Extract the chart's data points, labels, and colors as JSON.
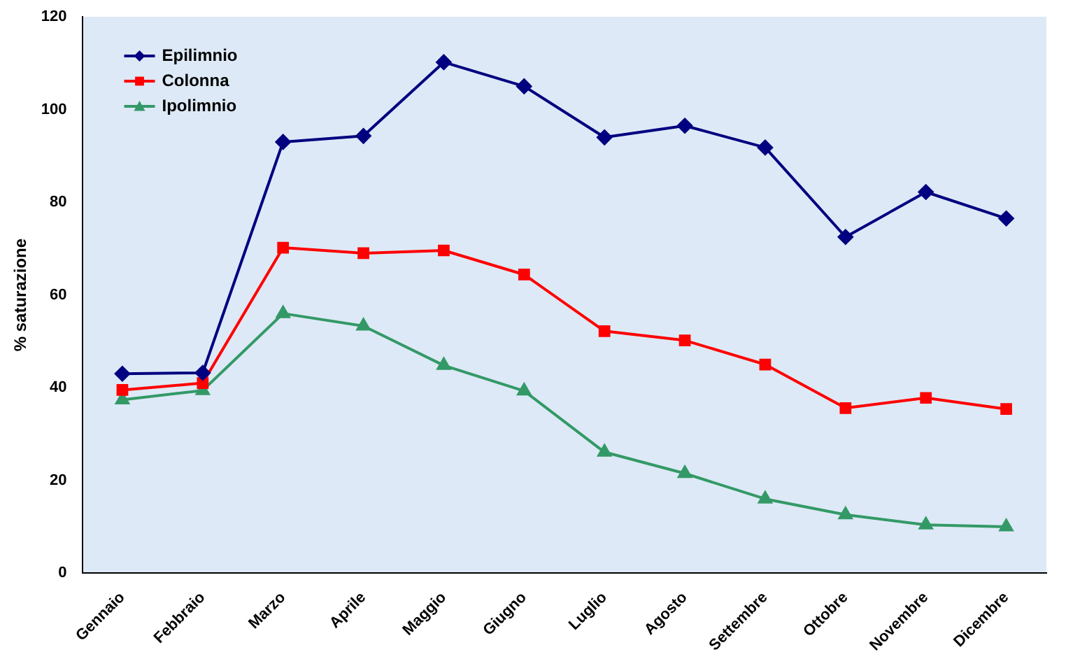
{
  "chart_data": {
    "type": "line",
    "ylabel": "% saturazione",
    "categories": [
      "Gennaio",
      "Febbraio",
      "Marzo",
      "Aprile",
      "Maggio",
      "Giugno",
      "Luglio",
      "Agosto",
      "Settembre",
      "Ottobre",
      "Novembre",
      "Dicembre"
    ],
    "series": [
      {
        "name": "Epilimnio",
        "color": "#000080",
        "marker": "diamond",
        "values": [
          43,
          43.2,
          93,
          94.3,
          110.2,
          105,
          94,
          96.5,
          91.8,
          72.5,
          82.2,
          76.5
        ]
      },
      {
        "name": "Colonna",
        "color": "#ff0000",
        "marker": "square",
        "values": [
          39.5,
          41,
          70.2,
          69,
          69.6,
          64.4,
          52.2,
          50.2,
          45,
          35.6,
          37.8,
          35.4
        ]
      },
      {
        "name": "Ipolimnio",
        "color": "#339966",
        "marker": "triangle",
        "values": [
          37.4,
          39.4,
          56,
          53.3,
          44.8,
          39.3,
          26.1,
          21.5,
          16,
          12.6,
          10.4,
          10
        ]
      }
    ],
    "ylim": [
      0,
      120
    ],
    "yticks": [
      0,
      20,
      40,
      60,
      80,
      100,
      120
    ],
    "grid": false,
    "legend": "top left",
    "line_style": "solid"
  }
}
